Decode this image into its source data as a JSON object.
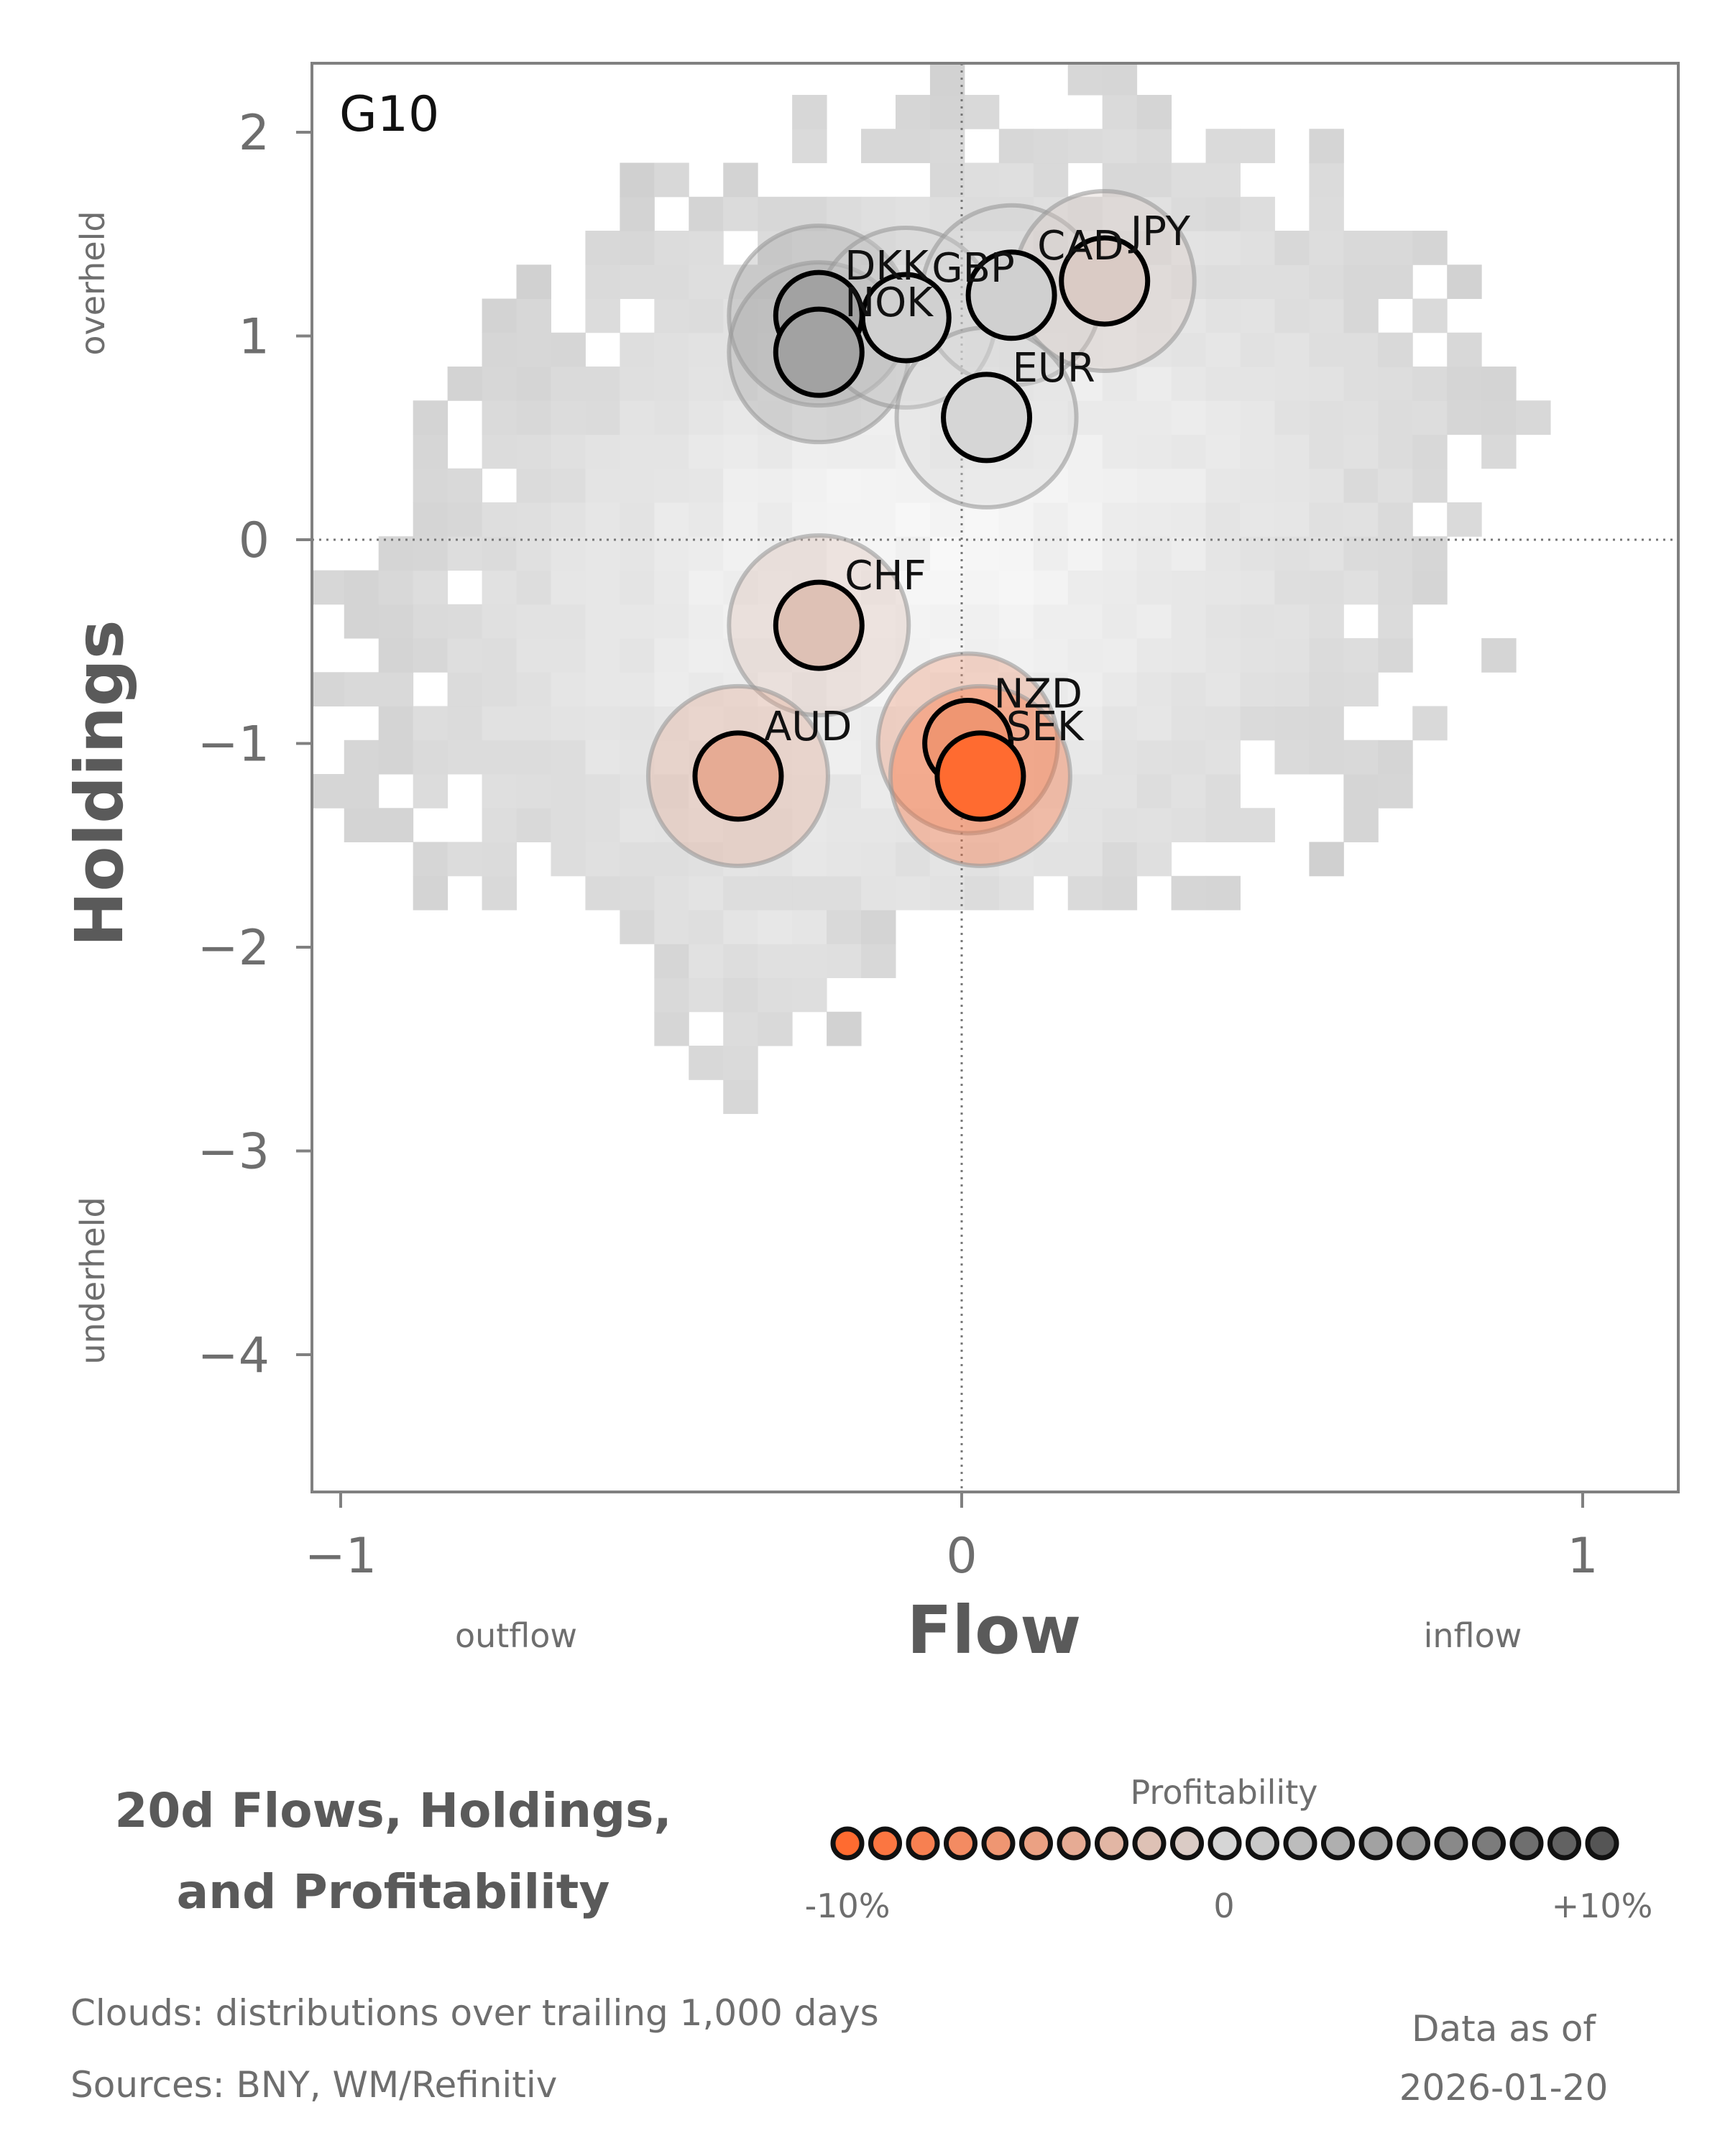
{
  "chart_data": {
    "type": "scatter",
    "panel_label": "G10",
    "title_lines": [
      "20d Flows, Holdings,",
      "and Profitability"
    ],
    "xlabel": "Flow",
    "ylabel": "Holdings",
    "x_annotations": {
      "low": "outflow",
      "high": "inflow"
    },
    "y_annotations": {
      "high": "overheld",
      "low": "underheld"
    },
    "xlim": [
      -1.05,
      1.15
    ],
    "ylim": [
      -4.65,
      2.33
    ],
    "xticks": [
      {
        "v": -1,
        "label": "−1"
      },
      {
        "v": 0,
        "label": "0"
      },
      {
        "v": 1,
        "label": "1"
      }
    ],
    "yticks": [
      {
        "v": 2,
        "label": "2"
      },
      {
        "v": 1,
        "label": "1"
      },
      {
        "v": 0,
        "label": "0"
      },
      {
        "v": -1,
        "label": "−1"
      },
      {
        "v": -2,
        "label": "−2"
      },
      {
        "v": -3,
        "label": "−3"
      },
      {
        "v": -4,
        "label": "−4"
      }
    ],
    "reference_lines": {
      "x": 0,
      "y": 0
    },
    "points": [
      {
        "ccy": "DKK",
        "flow": -0.23,
        "holdings": 1.1,
        "profit": 4
      },
      {
        "ccy": "NOK",
        "flow": -0.23,
        "holdings": 0.92,
        "profit": 4
      },
      {
        "ccy": "GBP",
        "flow": -0.09,
        "holdings": 1.09,
        "profit": 0.5
      },
      {
        "ccy": "CAD",
        "flow": 0.08,
        "holdings": 1.2,
        "profit": 0.5
      },
      {
        "ccy": "JPY",
        "flow": 0.23,
        "holdings": 1.27,
        "profit": -1
      },
      {
        "ccy": "EUR",
        "flow": 0.04,
        "holdings": 0.6,
        "profit": 0
      },
      {
        "ccy": "CHF",
        "flow": -0.23,
        "holdings": -0.42,
        "profit": -2
      },
      {
        "ccy": "AUD",
        "flow": -0.36,
        "holdings": -1.16,
        "profit": -4
      },
      {
        "ccy": "NZD",
        "flow": 0.01,
        "holdings": -1.0,
        "profit": -6
      },
      {
        "ccy": "SEK",
        "flow": 0.03,
        "holdings": -1.16,
        "profit": -10
      }
    ],
    "legend": {
      "title": "Profitability",
      "min_label": "-10%",
      "mid_label": "0",
      "max_label": "+10%",
      "steps": 21,
      "range": [
        -10,
        10
      ]
    },
    "colors": {
      "negative": "#ff6b30",
      "neutral": "#d6d6d6",
      "positive": "#555555",
      "frame": "#808080"
    }
  },
  "footer": {
    "clouds_note": "Clouds:  distributions over trailing 1,000 days",
    "sources": "Sources:  BNY, WM/Refinitiv",
    "data_as_of_label": "Data as of",
    "data_as_of_date": "2026-01-20"
  }
}
